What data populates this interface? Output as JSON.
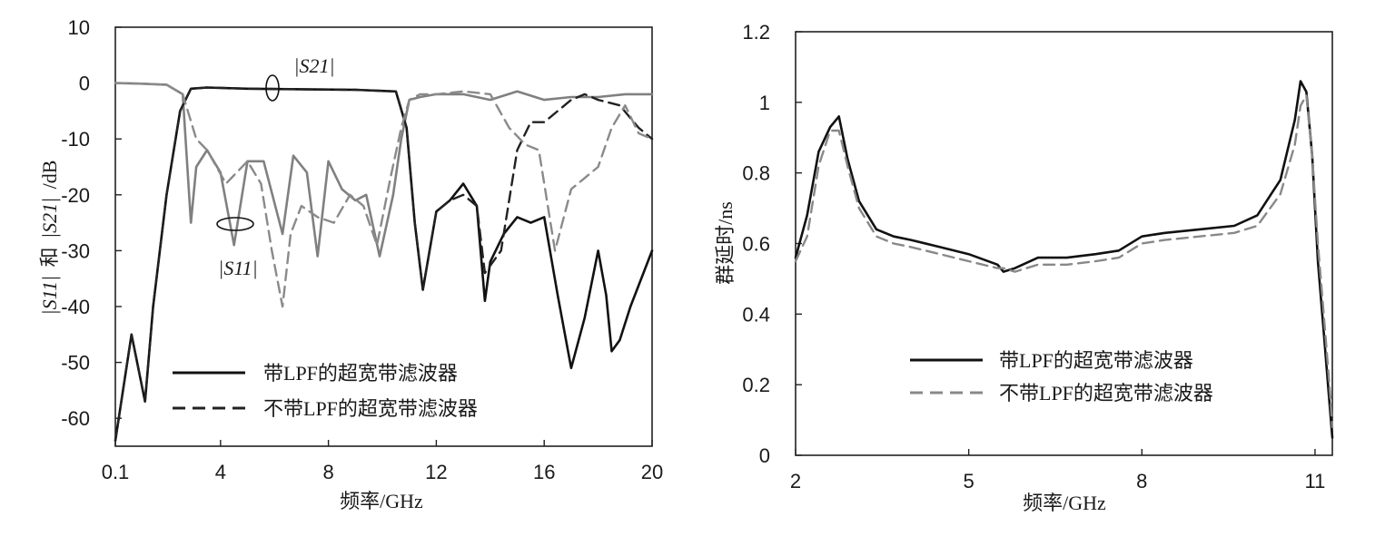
{
  "chart_data": [
    {
      "type": "line",
      "ylabel": "|S11| 和 |S21| /dB",
      "ylabel_parts": {
        "s11": "|S11|",
        "and": "和",
        "s21": "|S21|",
        "unit": "/dB"
      },
      "xlabel": "频率/GHz",
      "xlim": [
        0.1,
        20
      ],
      "ylim": [
        -65,
        10
      ],
      "x_ticks": [
        0.1,
        4,
        8,
        12,
        16,
        20
      ],
      "x_tick_labels": [
        "0.1",
        "4",
        "8",
        "12",
        "16",
        "20"
      ],
      "y_ticks": [
        10,
        0,
        -10,
        -20,
        -30,
        -40,
        -50,
        -60
      ],
      "y_tick_labels": [
        "10",
        "0",
        "-10",
        "-20",
        "-30",
        "-40",
        "-50",
        "-60"
      ],
      "grid": false,
      "legend_position": "bottom-center",
      "annotations": [
        {
          "text": "|S21|",
          "x": 5.6,
          "y": 2.5,
          "marker": "ellipse-on-S21"
        },
        {
          "text": "|S11|",
          "x": 4.4,
          "y": -33,
          "marker": "ellipse-on-S11"
        }
      ],
      "series": [
        {
          "name": "带LPF的超宽带滤波器",
          "role": "S21",
          "style": "solid",
          "color": "#111111",
          "x": [
            0.1,
            0.7,
            1.2,
            1.5,
            2.0,
            2.5,
            2.9,
            3.5,
            5,
            7,
            9,
            10.5,
            10.9,
            11.2,
            11.5,
            12,
            12.5,
            13,
            13.5,
            13.8,
            14,
            14.5,
            15,
            15.5,
            16,
            16.5,
            17,
            17.5,
            18,
            18.3,
            18.5,
            18.8,
            19.2,
            20
          ],
          "y": [
            -64,
            -45,
            -57,
            -40,
            -20,
            -5,
            -1,
            -0.8,
            -1,
            -1.1,
            -1.2,
            -1.5,
            -8,
            -25,
            -37,
            -23,
            -21,
            -18,
            -22,
            -39,
            -32,
            -27,
            -24,
            -25,
            -24,
            -38,
            -51,
            -42,
            -30,
            -38,
            -48,
            -46,
            -40,
            -30
          ]
        },
        {
          "name": "带LPF的超宽带滤波器",
          "role": "S11",
          "style": "solid",
          "color": "#808080",
          "x": [
            0.1,
            1,
            2,
            2.6,
            2.9,
            3.1,
            3.5,
            4,
            4.5,
            5,
            5.6,
            6.3,
            6.7,
            7.2,
            7.6,
            8,
            8.5,
            9,
            9.4,
            9.9,
            10.4,
            10.7,
            11,
            11.4,
            12,
            13,
            14,
            15,
            16,
            17,
            18,
            19,
            20
          ],
          "y": [
            0,
            -0.1,
            -0.3,
            -2,
            -25,
            -15,
            -12,
            -16,
            -29,
            -14,
            -14,
            -27,
            -13,
            -16,
            -31,
            -14,
            -19,
            -21,
            -20,
            -31,
            -20,
            -10,
            -3,
            -2.5,
            -2,
            -2,
            -3,
            -1.5,
            -3,
            -2.5,
            -2.5,
            -2,
            -2
          ]
        },
        {
          "name": "不带LPF的超宽带滤波器",
          "role": "S21",
          "style": "dashed",
          "color": "#222222",
          "x": [
            0.1,
            0.7,
            1.2,
            1.5,
            2.0,
            2.5,
            2.9,
            3.5,
            5,
            7,
            9,
            10.5,
            10.9,
            11.2,
            11.5,
            12,
            12.5,
            13,
            13.5,
            13.8,
            14.4,
            15,
            15.5,
            16,
            16.5,
            17,
            17.5,
            18,
            18.8,
            19.5,
            20
          ],
          "y": [
            -64,
            -45,
            -57,
            -40,
            -20,
            -5,
            -1,
            -0.8,
            -1,
            -1.1,
            -1.2,
            -1.5,
            -8,
            -25,
            -37,
            -23,
            -21,
            -20,
            -22,
            -34,
            -30,
            -12,
            -7,
            -7,
            -5,
            -3,
            -2,
            -3,
            -4,
            -8,
            -10
          ]
        },
        {
          "name": "不带LPF的超宽带滤波器",
          "role": "S11",
          "style": "dashed",
          "color": "#8a8a8a",
          "x": [
            0.1,
            1,
            2,
            2.6,
            3.1,
            3.5,
            4.2,
            5,
            5.5,
            5.9,
            6.3,
            6.6,
            7,
            7.6,
            8.2,
            8.8,
            9.3,
            9.8,
            10.3,
            10.7,
            11,
            11.4,
            12,
            13,
            14,
            14.7,
            15.3,
            15.8,
            16.4,
            17,
            17.5,
            18,
            18.5,
            19,
            19.5,
            20
          ],
          "y": [
            0,
            -0.1,
            -0.3,
            -2,
            -10,
            -12,
            -18,
            -14,
            -18,
            -30,
            -40,
            -27,
            -22,
            -24,
            -25,
            -20,
            -22,
            -29,
            -17,
            -8,
            -3,
            -2,
            -2,
            -1.5,
            -2,
            -8,
            -11,
            -12,
            -30,
            -19,
            -17,
            -15,
            -8,
            -4,
            -9,
            -10
          ]
        }
      ],
      "legend": [
        {
          "label": "带LPF的超宽带滤波器",
          "style": "solid"
        },
        {
          "label": "不带LPF的超宽带滤波器",
          "style": "dashed"
        }
      ]
    },
    {
      "type": "line",
      "ylabel": "群延时/ns",
      "xlabel": "频率/GHz",
      "xlim": [
        2,
        11.3
      ],
      "ylim": [
        0,
        1.2
      ],
      "x_ticks": [
        2,
        5,
        8,
        11
      ],
      "x_tick_labels": [
        "2",
        "5",
        "8",
        "11"
      ],
      "y_ticks": [
        1.2,
        1,
        0.8,
        0.6,
        0.4,
        0.2,
        0
      ],
      "y_tick_labels": [
        "1.2",
        "1",
        "0.8",
        "0.6",
        "0.4",
        "0.2",
        "0"
      ],
      "grid": false,
      "legend_position": "bottom-right",
      "series": [
        {
          "name": "带LPF的超宽带滤波器",
          "style": "solid",
          "color": "#111111",
          "x": [
            2,
            2.2,
            2.4,
            2.6,
            2.75,
            2.9,
            3.1,
            3.4,
            3.7,
            4.0,
            4.5,
            5.0,
            5.5,
            5.6,
            5.8,
            6.2,
            6.7,
            7.2,
            7.6,
            8.0,
            8.4,
            9.0,
            9.6,
            10.0,
            10.4,
            10.65,
            10.75,
            10.85,
            10.95,
            11.05,
            11.15,
            11.25,
            11.3
          ],
          "y": [
            0.56,
            0.68,
            0.86,
            0.93,
            0.96,
            0.84,
            0.72,
            0.64,
            0.62,
            0.61,
            0.59,
            0.57,
            0.54,
            0.52,
            0.53,
            0.56,
            0.56,
            0.57,
            0.58,
            0.62,
            0.63,
            0.64,
            0.65,
            0.68,
            0.78,
            0.95,
            1.06,
            1.03,
            0.85,
            0.55,
            0.35,
            0.15,
            0.05
          ]
        },
        {
          "name": "不带LPF的超宽带滤波器",
          "style": "dashed",
          "color": "#888888",
          "x": [
            2,
            2.2,
            2.4,
            2.6,
            2.75,
            2.9,
            3.1,
            3.4,
            3.7,
            4.0,
            4.5,
            5.0,
            5.5,
            5.6,
            5.8,
            6.2,
            6.7,
            7.2,
            7.6,
            8.0,
            8.4,
            9.0,
            9.6,
            10.0,
            10.4,
            10.65,
            10.75,
            10.85,
            10.95,
            11.05,
            11.15,
            11.25,
            11.3
          ],
          "y": [
            0.55,
            0.62,
            0.82,
            0.92,
            0.92,
            0.82,
            0.7,
            0.62,
            0.6,
            0.59,
            0.57,
            0.55,
            0.53,
            0.53,
            0.52,
            0.54,
            0.54,
            0.55,
            0.56,
            0.6,
            0.61,
            0.62,
            0.63,
            0.65,
            0.74,
            0.88,
            0.99,
            1.02,
            0.85,
            0.6,
            0.4,
            0.2,
            0.08
          ]
        }
      ],
      "legend": [
        {
          "label": "带LPF的超宽带滤波器",
          "style": "solid"
        },
        {
          "label": "不带LPF的超宽带滤波器",
          "style": "dashed"
        }
      ]
    }
  ]
}
